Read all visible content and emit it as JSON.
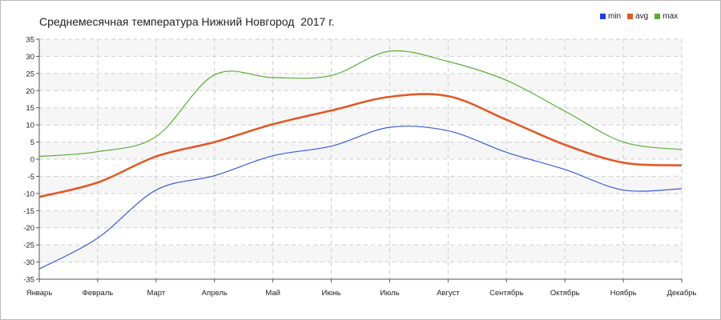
{
  "chart_data": {
    "type": "line",
    "title": "Среднемесячная температура Нижний Новгород  2017 г.",
    "categories": [
      "Январь",
      "Февраль",
      "Март",
      "Апрель",
      "Май",
      "Июнь",
      "Июль",
      "Август",
      "Сентябрь",
      "Октябрь",
      "Ноябрь",
      "Декабрь"
    ],
    "y_ticks": [
      35,
      30,
      25,
      20,
      15,
      10,
      5,
      0,
      -5,
      -10,
      -15,
      -20,
      -25,
      -30,
      -35
    ],
    "ylim": [
      -35,
      35
    ],
    "grid": true,
    "legend_position": "top-right",
    "series": [
      {
        "name": "min",
        "color": "#3c5bd6",
        "values": [
          -32,
          -23,
          -9,
          -4.8,
          1,
          3.8,
          9.3,
          8.3,
          2,
          -3,
          -9,
          -8.6
        ]
      },
      {
        "name": "avg",
        "color": "#e05a28",
        "values": [
          -11,
          -6.8,
          0.8,
          5,
          10.2,
          14.2,
          18.2,
          18.4,
          11.5,
          4.2,
          -1,
          -1.8
        ]
      },
      {
        "name": "max",
        "color": "#5aad38",
        "values": [
          0.8,
          2.2,
          6.6,
          24.6,
          23.8,
          24.4,
          31.5,
          28.5,
          23,
          14,
          5,
          2.8
        ]
      }
    ]
  }
}
